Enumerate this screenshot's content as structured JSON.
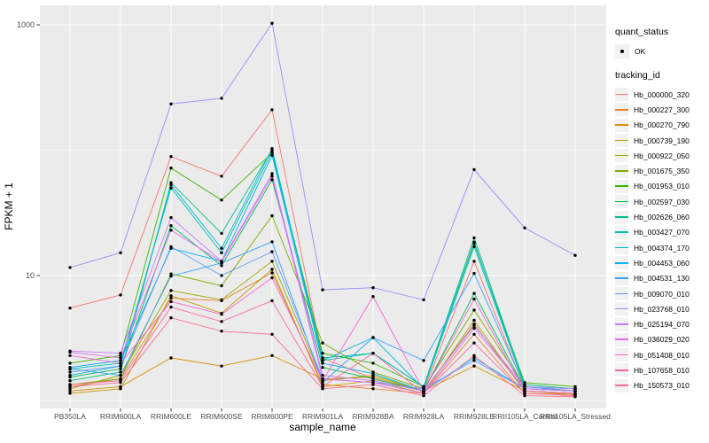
{
  "chart_data": {
    "type": "line",
    "xlabel": "sample_name",
    "ylabel": "FPKM + 1",
    "y_scale": "log10",
    "y_ticks": [
      {
        "label": "1000",
        "value": 1000
      },
      {
        "label": "10",
        "value": 10
      }
    ],
    "y_minor_gridlines": [
      1,
      100
    ],
    "ylim": [
      0.87,
      1430
    ],
    "grid": true,
    "panel_background": "#EBEBEB",
    "gridline_color": "#FFFFFF",
    "point_color": "#000000",
    "tick_label_color": "#4D4D4D",
    "legend_position": "right",
    "categories": [
      "PB350LA",
      "RRIM600LA",
      "RRIM600LE",
      "RRIM600SE",
      "RRIM600PE",
      "RRIM901LA",
      "RRIM928BA",
      "RRIM928LA",
      "RRIM928LE",
      "RRII105LA_Control",
      "RRII105LA_Stressed"
    ],
    "series": [
      {
        "tracking_id": "Hb_000000_320",
        "color": "#F8766D",
        "values": [
          5.5,
          7.0,
          89,
          62,
          210,
          2.2,
          1.5,
          1.2,
          13,
          1.25,
          1.2
        ]
      },
      {
        "tracking_id": "Hb_000227_300",
        "color": "#EA8331",
        "values": [
          1.3,
          1.5,
          6.6,
          6.3,
          10.5,
          1.35,
          1.25,
          1.15,
          3.4,
          1.15,
          1.12
        ]
      },
      {
        "tracking_id": "Hb_000270_790",
        "color": "#D89000",
        "values": [
          1.2,
          1.3,
          2.2,
          1.9,
          2.3,
          1.5,
          1.55,
          1.2,
          1.9,
          1.2,
          1.15
        ]
      },
      {
        "tracking_id": "Hb_000739_190",
        "color": "#C09B00",
        "values": [
          1.15,
          1.25,
          6.9,
          5.0,
          11.2,
          1.3,
          1.45,
          1.15,
          4.4,
          1.2,
          1.12
        ]
      },
      {
        "tracking_id": "Hb_000922_050",
        "color": "#A3A500",
        "values": [
          1.25,
          1.6,
          7.6,
          6.4,
          13,
          1.45,
          1.6,
          1.2,
          4.1,
          1.2,
          1.15
        ]
      },
      {
        "tracking_id": "Hb_001675_350",
        "color": "#7CAE00",
        "values": [
          1.35,
          1.5,
          10.3,
          8.3,
          30,
          2.9,
          1.7,
          1.25,
          5.3,
          1.3,
          1.2
        ]
      },
      {
        "tracking_id": "Hb_001953_010",
        "color": "#39B600",
        "values": [
          2.0,
          2.3,
          72,
          40,
          95,
          2.4,
          2.0,
          1.3,
          18,
          1.4,
          1.3
        ]
      },
      {
        "tracking_id": "Hb_002597_030",
        "color": "#00BB4E",
        "values": [
          1.55,
          1.8,
          25,
          12,
          58,
          1.85,
          1.5,
          1.2,
          7.2,
          1.25,
          1.2
        ]
      },
      {
        "tracking_id": "Hb_002626_060",
        "color": "#00C087",
        "values": [
          1.45,
          1.7,
          55,
          21.7,
          101,
          2.1,
          2.4,
          1.3,
          20,
          1.35,
          1.25
        ]
      },
      {
        "tracking_id": "Hb_003427_070",
        "color": "#00C0AF",
        "values": [
          1.8,
          2.0,
          50,
          15.2,
          97,
          2.2,
          2.4,
          1.3,
          18.5,
          1.3,
          1.25
        ]
      },
      {
        "tracking_id": "Hb_004374_170",
        "color": "#00BCD8",
        "values": [
          1.6,
          1.9,
          53,
          16.5,
          103,
          2.1,
          3.2,
          1.25,
          17,
          1.3,
          1.2
        ]
      },
      {
        "tracking_id": "Hb_004453_060",
        "color": "#00B0F6",
        "values": [
          1.85,
          2.1,
          16.5,
          13,
          91,
          2.0,
          1.65,
          1.2,
          2.2,
          1.25,
          1.2
        ]
      },
      {
        "tracking_id": "Hb_004531_130",
        "color": "#35A2FF",
        "values": [
          1.8,
          1.6,
          9.9,
          12.6,
          18.6,
          1.4,
          3.2,
          2.1,
          10.4,
          1.3,
          1.2
        ]
      },
      {
        "tracking_id": "Hb_009070_010",
        "color": "#619CFF",
        "values": [
          1.7,
          1.9,
          17,
          10,
          15.5,
          1.5,
          1.4,
          1.25,
          2.1,
          1.25,
          1.2
        ]
      },
      {
        "tracking_id": "Hb_023768_010",
        "color": "#9590FF",
        "values": [
          11.6,
          15.2,
          234,
          259,
          1030,
          7.7,
          8.0,
          6.4,
          70,
          24,
          14.5
        ]
      },
      {
        "tracking_id": "Hb_025194_070",
        "color": "#C77CFF",
        "values": [
          2.5,
          2.4,
          29,
          13,
          65,
          1.6,
          1.45,
          1.2,
          4.0,
          1.3,
          1.25
        ]
      },
      {
        "tracking_id": "Hb_036029_020",
        "color": "#E76BF3",
        "values": [
          2.45,
          2.2,
          23,
          12.8,
          62,
          1.5,
          1.4,
          1.15,
          3.8,
          1.25,
          1.2
        ]
      },
      {
        "tracking_id": "Hb_051408_010",
        "color": "#FA62DB",
        "values": [
          2.3,
          2.0,
          6.2,
          4.9,
          9.6,
          1.45,
          6.8,
          1.2,
          6.5,
          1.2,
          1.15
        ]
      },
      {
        "tracking_id": "Hb_107658_010",
        "color": "#FF67A4",
        "values": [
          1.35,
          1.45,
          5.6,
          4.3,
          6.3,
          1.3,
          2.4,
          1.15,
          2.9,
          1.15,
          1.1
        ]
      },
      {
        "tracking_id": "Hb_150573_010",
        "color": "#FF6B8E",
        "values": [
          1.3,
          1.4,
          4.6,
          3.6,
          3.4,
          1.25,
          1.35,
          1.1,
          2.3,
          1.1,
          1.08
        ]
      }
    ]
  },
  "legend": {
    "quant_status_title": "quant_status",
    "ok_label": "OK",
    "tracking_id_title": "tracking_id"
  }
}
